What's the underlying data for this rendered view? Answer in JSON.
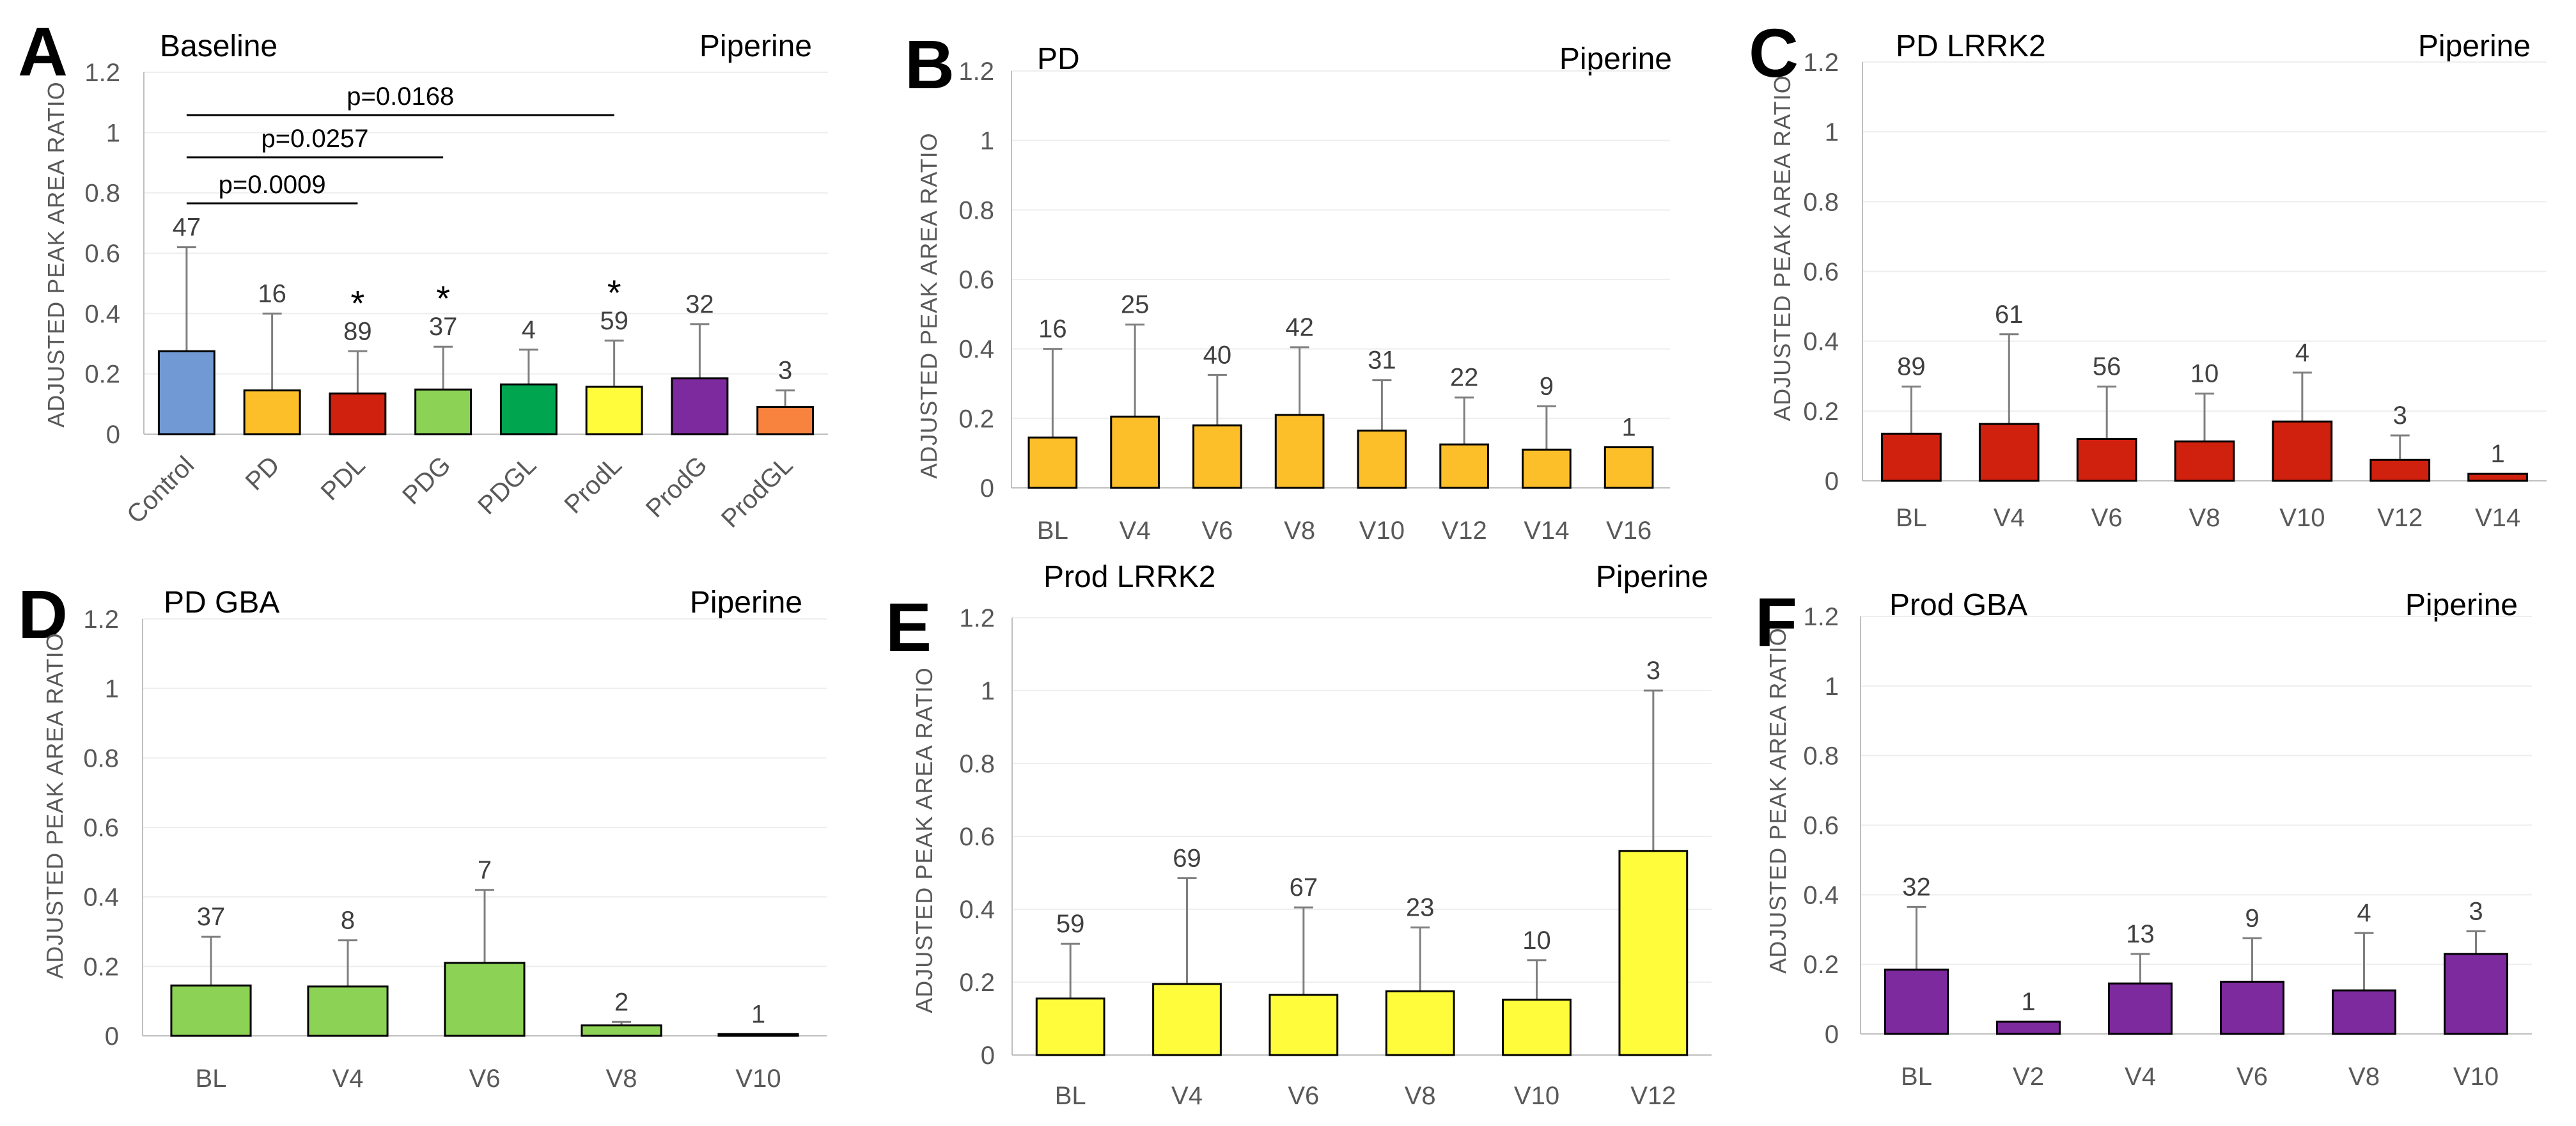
{
  "chart_data": [
    {
      "id": "A",
      "letter": "A",
      "type": "bar",
      "title": "Baseline",
      "subtitle": "Piperine",
      "ylabel": "ADJUSTED PEAK AREA RATIO",
      "ylim": [
        0,
        1.2
      ],
      "yticks": [
        "0",
        "0.2",
        "0.4",
        "0.6",
        "0.8",
        "1",
        "1.2"
      ],
      "categories": [
        "Control",
        "PD",
        "PDL",
        "PDG",
        "PDGL",
        "ProdL",
        "ProdG",
        "ProdGL"
      ],
      "values": [
        0.275,
        0.145,
        0.135,
        0.148,
        0.165,
        0.157,
        0.185,
        0.09
      ],
      "error_upper": [
        0.62,
        0.4,
        0.275,
        0.29,
        0.28,
        0.31,
        0.365,
        0.145
      ],
      "n": [
        "47",
        "16",
        "89",
        "37",
        "4",
        "59",
        "32",
        "3"
      ],
      "stars": [
        "",
        "",
        "*",
        "*",
        "",
        "*",
        "",
        ""
      ],
      "colors": [
        "#7199d4",
        "#fcbf2a",
        "#d0210f",
        "#8cd254",
        "#00a550",
        "#fffd3b",
        "#7d2a9e",
        "#f7833f"
      ],
      "pvalues": [
        {
          "text": "p=0.0168",
          "from": 0,
          "to": 5
        },
        {
          "text": "p=0.0257",
          "from": 0,
          "to": 3
        },
        {
          "text": "p=0.0009",
          "from": 0,
          "to": 2
        }
      ]
    },
    {
      "id": "B",
      "letter": "B",
      "type": "bar",
      "title": "PD",
      "subtitle": "Piperine",
      "ylabel": "ADJUSTED PEAK AREA RATIO",
      "ylim": [
        0,
        1.2
      ],
      "yticks": [
        "0",
        "0.2",
        "0.4",
        "0.6",
        "0.8",
        "1",
        "1.2"
      ],
      "categories": [
        "BL",
        "V4",
        "V6",
        "V8",
        "V10",
        "V12",
        "V14",
        "V16"
      ],
      "values": [
        0.145,
        0.205,
        0.18,
        0.21,
        0.165,
        0.125,
        0.11,
        0.117
      ],
      "error_upper": [
        0.4,
        0.47,
        0.325,
        0.405,
        0.31,
        0.26,
        0.235,
        0.117
      ],
      "n": [
        "16",
        "25",
        "40",
        "42",
        "31",
        "22",
        "9",
        "1"
      ],
      "color": "#fcbf2a"
    },
    {
      "id": "C",
      "letter": "C",
      "type": "bar",
      "title": "PD LRRK2",
      "subtitle": "Piperine",
      "ylabel": "ADJUSTED PEAK AREA RATIO",
      "ylim": [
        0,
        1.2
      ],
      "yticks": [
        "0",
        "0.2",
        "0.4",
        "0.6",
        "0.8",
        "1",
        "1.2"
      ],
      "categories": [
        "BL",
        "V4",
        "V6",
        "V8",
        "V10",
        "V12",
        "V14"
      ],
      "values": [
        0.135,
        0.163,
        0.12,
        0.113,
        0.17,
        0.06,
        0.02
      ],
      "error_upper": [
        0.27,
        0.42,
        0.27,
        0.25,
        0.31,
        0.13,
        0.02
      ],
      "n": [
        "89",
        "61",
        "56",
        "10",
        "4",
        "3",
        "1"
      ],
      "color": "#d0210f"
    },
    {
      "id": "D",
      "letter": "D",
      "type": "bar",
      "title": "PD GBA",
      "subtitle": "Piperine",
      "ylabel": "ADJUSTED PEAK AREA RATIO",
      "ylim": [
        0,
        1.2
      ],
      "yticks": [
        "0",
        "0.2",
        "0.4",
        "0.6",
        "0.8",
        "1",
        "1.2"
      ],
      "categories": [
        "BL",
        "V4",
        "V6",
        "V8",
        "V10"
      ],
      "values": [
        0.145,
        0.142,
        0.21,
        0.03,
        0.005
      ],
      "error_upper": [
        0.285,
        0.275,
        0.42,
        0.04,
        0.005
      ],
      "n": [
        "37",
        "8",
        "7",
        "2",
        "1"
      ],
      "color": "#8cd254"
    },
    {
      "id": "E",
      "letter": "E",
      "type": "bar",
      "title": "Prod LRRK2",
      "subtitle": "Piperine",
      "ylabel": "ADJUSTED PEAK AREA RATIO",
      "ylim": [
        0,
        1.2
      ],
      "yticks": [
        "0",
        "0.2",
        "0.4",
        "0.6",
        "0.8",
        "1",
        "1.2"
      ],
      "categories": [
        "BL",
        "V4",
        "V6",
        "V8",
        "V10",
        "V12"
      ],
      "values": [
        0.155,
        0.195,
        0.165,
        0.175,
        0.152,
        0.56
      ],
      "error_upper": [
        0.305,
        0.485,
        0.405,
        0.35,
        0.26,
        1.0
      ],
      "n": [
        "59",
        "69",
        "67",
        "23",
        "10",
        "3"
      ],
      "color": "#fffd3b"
    },
    {
      "id": "F",
      "letter": "F",
      "type": "bar",
      "title": "Prod GBA",
      "subtitle": "Piperine",
      "ylabel": "ADJUSTED PEAK AREA RATIO",
      "ylim": [
        0,
        1.2
      ],
      "yticks": [
        "0",
        "0.2",
        "0.4",
        "0.6",
        "0.8",
        "1",
        "1.2"
      ],
      "categories": [
        "BL",
        "V2",
        "V4",
        "V6",
        "V8",
        "V10"
      ],
      "values": [
        0.185,
        0.035,
        0.145,
        0.15,
        0.125,
        0.23
      ],
      "error_upper": [
        0.365,
        0.035,
        0.23,
        0.275,
        0.29,
        0.295
      ],
      "n": [
        "32",
        "1",
        "13",
        "9",
        "4",
        "3"
      ],
      "color": "#7d2a9e"
    }
  ]
}
